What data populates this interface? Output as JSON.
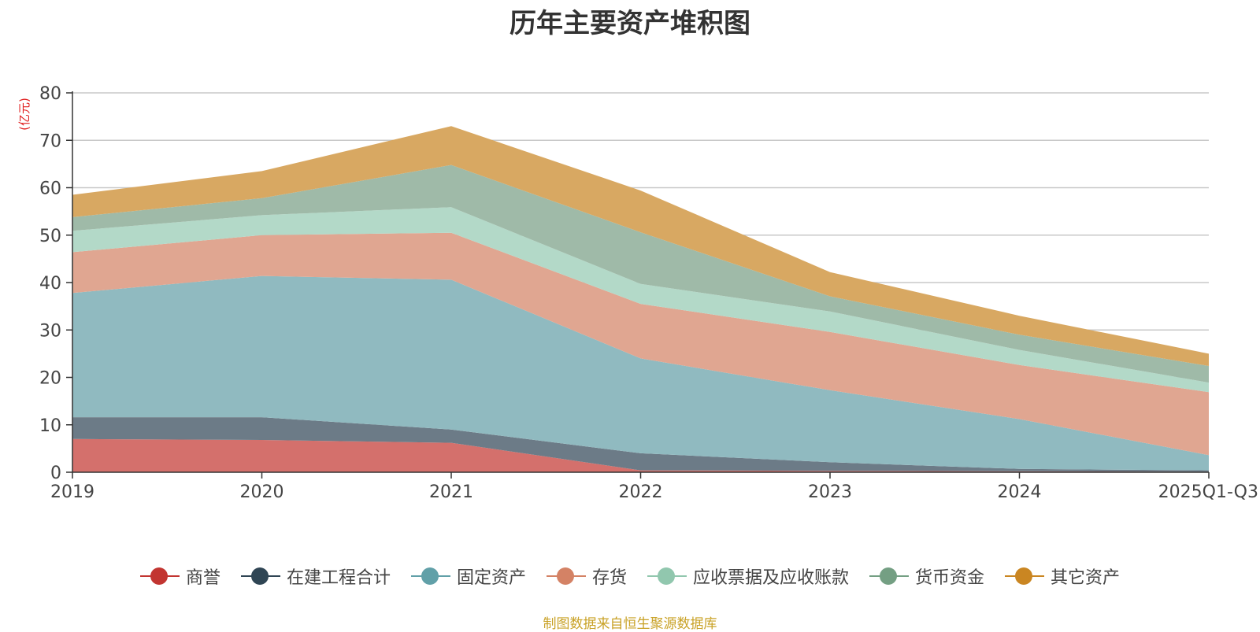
{
  "chart_data": {
    "type": "area",
    "stacked": true,
    "title": "历年主要资产堆积图",
    "ylabel": "(亿元)",
    "xlabel": "",
    "ylim": [
      0,
      80
    ],
    "yticks": [
      0,
      10,
      20,
      30,
      40,
      50,
      60,
      70,
      80
    ],
    "categories": [
      "2019",
      "2020",
      "2021",
      "2022",
      "2023",
      "2024",
      "2025Q1-Q3"
    ],
    "series": [
      {
        "name": "商誉",
        "color": "#c23531",
        "fill": "#d4706c",
        "values": [
          7.0,
          6.8,
          6.2,
          0.4,
          0.3,
          0.2,
          0.1
        ]
      },
      {
        "name": "在建工程合计",
        "color": "#2f4554",
        "fill": "#6c7b87",
        "values": [
          4.6,
          4.8,
          2.8,
          3.6,
          1.8,
          0.5,
          0.3
        ]
      },
      {
        "name": "固定资产",
        "color": "#61a0a8",
        "fill": "#90bac0",
        "values": [
          26.2,
          29.8,
          31.6,
          20.0,
          15.2,
          10.5,
          3.2
        ]
      },
      {
        "name": "存货",
        "color": "#d48265",
        "fill": "#e0a691",
        "values": [
          8.6,
          8.6,
          9.9,
          11.5,
          12.3,
          11.4,
          13.3
        ]
      },
      {
        "name": "应收票据及应收账款",
        "color": "#91c7ae",
        "fill": "#b3d9c8",
        "values": [
          4.5,
          4.2,
          5.4,
          4.2,
          4.3,
          3.2,
          2.0
        ]
      },
      {
        "name": "货币资金",
        "color": "#749f83",
        "fill": "#9fbaa8",
        "values": [
          2.9,
          3.6,
          8.9,
          10.9,
          3.2,
          3.2,
          3.5
        ]
      },
      {
        "name": "其它资产",
        "color": "#ca8622",
        "fill": "#d8a862",
        "values": [
          4.7,
          5.7,
          8.2,
          8.8,
          5.1,
          4.0,
          2.6
        ]
      }
    ]
  },
  "footer": {
    "source": "制图数据来自恒生聚源数据库"
  }
}
